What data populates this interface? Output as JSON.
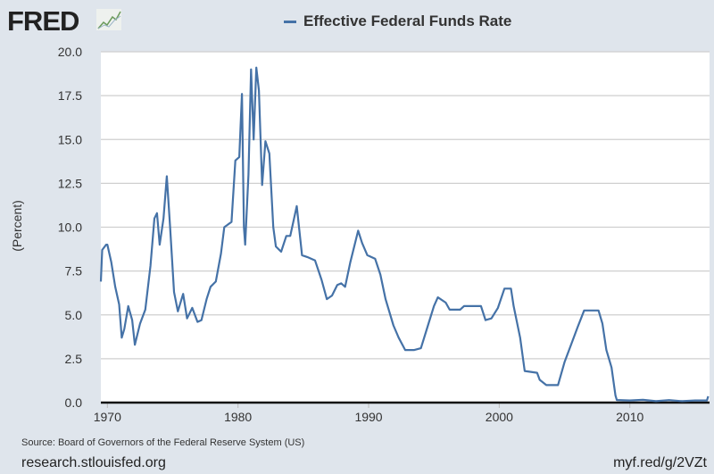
{
  "header": {
    "logo_text": "FRED",
    "logo_icon": "chart-line-icon"
  },
  "footer": {
    "source": "Source: Board of Governors of the Federal Reserve System (US)",
    "site": "research.stlouisfed.org",
    "short_link": "myf.red/g/2VZt"
  },
  "chart_data": {
    "type": "line",
    "title": "",
    "legend": [
      "Effective Federal Funds Rate"
    ],
    "legend_placement": "top",
    "xlabel": "",
    "ylabel": "(Percent)",
    "xlim": [
      1969.5,
      2016.1
    ],
    "ylim": [
      0,
      20
    ],
    "grid": true,
    "line_color": "#4572a7",
    "x_ticks": [
      "1970",
      "1980",
      "1990",
      "2000",
      "2010"
    ],
    "y_ticks": [
      "0.0",
      "2.5",
      "5.0",
      "7.5",
      "10.0",
      "12.5",
      "15.0",
      "17.5",
      "20.0"
    ],
    "series": [
      {
        "name": "Effective Federal Funds Rate",
        "x": [
          1969.5,
          1969.6,
          1969.9,
          1970.0,
          1970.3,
          1970.6,
          1970.9,
          1971.1,
          1971.3,
          1971.6,
          1971.9,
          1972.1,
          1972.5,
          1972.9,
          1973.3,
          1973.6,
          1973.8,
          1974.0,
          1974.3,
          1974.55,
          1974.8,
          1975.1,
          1975.4,
          1975.8,
          1976.1,
          1976.5,
          1976.9,
          1977.2,
          1977.6,
          1977.9,
          1978.3,
          1978.7,
          1978.95,
          1979.5,
          1979.8,
          1980.1,
          1980.3,
          1980.45,
          1980.55,
          1980.8,
          1981.0,
          1981.2,
          1981.4,
          1981.6,
          1981.85,
          1982.1,
          1982.4,
          1982.7,
          1982.9,
          1983.3,
          1983.7,
          1984.0,
          1984.5,
          1984.9,
          1985.3,
          1985.9,
          1986.4,
          1986.8,
          1987.2,
          1987.6,
          1987.9,
          1988.2,
          1988.6,
          1989.2,
          1989.5,
          1989.9,
          1990.5,
          1990.9,
          1991.3,
          1991.9,
          1992.3,
          1992.8,
          1993.5,
          1994.0,
          1994.5,
          1995.0,
          1995.3,
          1995.9,
          1996.2,
          1997.0,
          1997.3,
          1998.6,
          1998.95,
          1999.4,
          1999.9,
          2000.4,
          2000.9,
          2001.1,
          2001.6,
          2001.95,
          2002.9,
          2003.1,
          2003.6,
          2004.5,
          2005.0,
          2006.0,
          2006.5,
          2007.6,
          2007.9,
          2008.2,
          2008.6,
          2008.9,
          2009.0,
          2010.0,
          2011.0,
          2012.0,
          2013.0,
          2014.0,
          2015.0,
          2015.9,
          2016.0
        ],
        "y": [
          6.9,
          8.7,
          9.0,
          9.0,
          8.0,
          6.6,
          5.6,
          3.7,
          4.2,
          5.5,
          4.7,
          3.3,
          4.5,
          5.3,
          7.8,
          10.5,
          10.8,
          9.0,
          10.5,
          12.9,
          10.0,
          6.3,
          5.2,
          6.2,
          4.8,
          5.4,
          4.6,
          4.7,
          5.9,
          6.6,
          6.9,
          8.5,
          10.0,
          10.3,
          13.8,
          14.0,
          17.6,
          10.0,
          9.0,
          13.0,
          19.0,
          15.0,
          19.1,
          17.8,
          12.4,
          14.9,
          14.2,
          10.0,
          8.9,
          8.6,
          9.5,
          9.5,
          11.2,
          8.4,
          8.3,
          8.1,
          7.0,
          5.9,
          6.1,
          6.7,
          6.8,
          6.6,
          8.0,
          9.8,
          9.1,
          8.4,
          8.2,
          7.3,
          5.9,
          4.4,
          3.7,
          3.0,
          3.0,
          3.1,
          4.3,
          5.5,
          6.0,
          5.7,
          5.3,
          5.3,
          5.5,
          5.5,
          4.7,
          4.8,
          5.4,
          6.5,
          6.5,
          5.5,
          3.7,
          1.8,
          1.7,
          1.3,
          1.0,
          1.0,
          2.3,
          4.3,
          5.25,
          5.25,
          4.5,
          3.0,
          2.0,
          0.4,
          0.15,
          0.12,
          0.16,
          0.08,
          0.14,
          0.08,
          0.12,
          0.12,
          0.36
        ]
      }
    ]
  }
}
